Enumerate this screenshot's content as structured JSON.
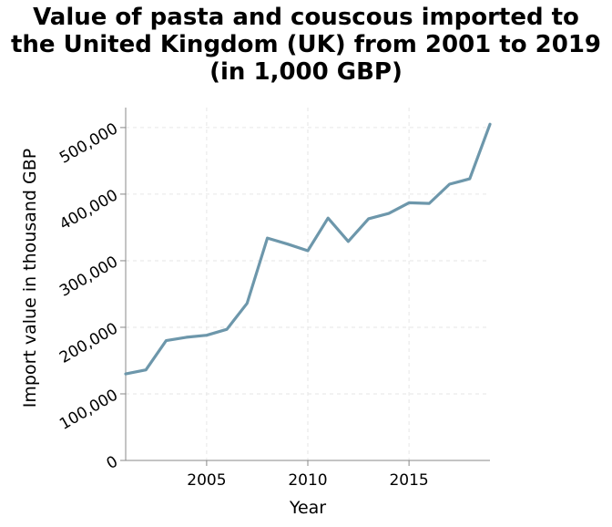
{
  "chart_data": {
    "type": "line",
    "title_lines": [
      "Value of pasta and couscous imported to",
      "the United Kingdom (UK) from 2001 to 2019",
      "(in 1,000 GBP)"
    ],
    "xlabel": "Year",
    "ylabel": "Import value in thousand GBP",
    "xlim": [
      2001,
      2019
    ],
    "ylim": [
      0,
      530000
    ],
    "x_ticks": [
      2005,
      2010,
      2015
    ],
    "y_ticks": [
      0,
      100000,
      200000,
      300000,
      400000,
      500000
    ],
    "y_tick_labels": [
      "0",
      "100,000",
      "200,000",
      "300,000",
      "400,000",
      "500,000"
    ],
    "grid": true,
    "line_color": "#6d97ab",
    "x": [
      2001,
      2002,
      2003,
      2004,
      2005,
      2006,
      2007,
      2008,
      2009,
      2010,
      2011,
      2012,
      2013,
      2014,
      2015,
      2016,
      2017,
      2018,
      2019
    ],
    "values": [
      130000,
      136000,
      180000,
      185000,
      188000,
      197000,
      236000,
      334000,
      325000,
      315000,
      364000,
      329000,
      363000,
      371000,
      387000,
      386000,
      415000,
      423000,
      505000
    ]
  }
}
